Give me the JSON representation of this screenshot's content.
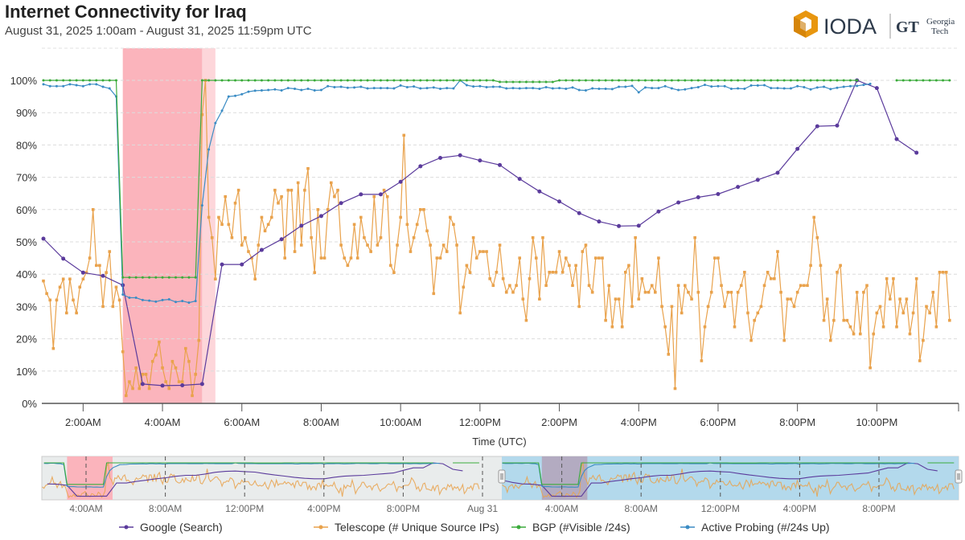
{
  "header": {
    "title": "Internet Connectivity for Iraq",
    "subtitle": "August 31, 2025 1:00am - August 31, 2025 11:59pm UTC"
  },
  "logo": {
    "ioda": "IODA",
    "gt_mark": "GT",
    "gt_line1": "Georgia",
    "gt_line2": "Tech"
  },
  "colors": {
    "google": "#5b3b9c",
    "telescope": "#e9a24c",
    "bgp": "#3bab3b",
    "probing": "#3b8cc4",
    "outage": "#fbb4bc",
    "outage_light": "#fdd6da",
    "nav_selection": "#a9d6ec"
  },
  "chart_data": {
    "type": "line",
    "title": "Internet Connectivity for Iraq",
    "xlabel": "Time (UTC)",
    "ylabel": "",
    "ylim": [
      0,
      110
    ],
    "xlim": [
      "01:00",
      "23:59"
    ],
    "grid": true,
    "legend_position": "bottom",
    "x_ticks": [
      {
        "time": "02:00",
        "label": "2:00AM"
      },
      {
        "time": "04:00",
        "label": "4:00AM"
      },
      {
        "time": "06:00",
        "label": "6:00AM"
      },
      {
        "time": "08:00",
        "label": "8:00AM"
      },
      {
        "time": "10:00",
        "label": "10:00AM"
      },
      {
        "time": "12:00",
        "label": "12:00PM"
      },
      {
        "time": "14:00",
        "label": "2:00PM"
      },
      {
        "time": "16:00",
        "label": "4:00PM"
      },
      {
        "time": "18:00",
        "label": "6:00PM"
      },
      {
        "time": "20:00",
        "label": "8:00PM"
      },
      {
        "time": "22:00",
        "label": "10:00PM"
      }
    ],
    "y_ticks": [
      {
        "value": 0,
        "label": "0%"
      },
      {
        "value": 10,
        "label": "10%"
      },
      {
        "value": 20,
        "label": "20%"
      },
      {
        "value": 30,
        "label": "30%"
      },
      {
        "value": 40,
        "label": "40%"
      },
      {
        "value": 50,
        "label": "50%"
      },
      {
        "value": 60,
        "label": "60%"
      },
      {
        "value": 70,
        "label": "70%"
      },
      {
        "value": 80,
        "label": "80%"
      },
      {
        "value": 90,
        "label": "90%"
      },
      {
        "value": 100,
        "label": "100%"
      }
    ],
    "outage_regions": [
      {
        "start": "03:00",
        "end": "05:00",
        "level": "severe"
      },
      {
        "start": "05:00",
        "end": "05:20",
        "level": "minor"
      }
    ],
    "series": [
      {
        "key": "google",
        "name": "Google (Search)",
        "marker": "circle",
        "start": "01:00",
        "interval_minutes": 30,
        "values": [
          51,
          44.8,
          40.5,
          39.5,
          36.6,
          6,
          5.5,
          5.6,
          6,
          43,
          43,
          47.5,
          50.8,
          55,
          58,
          62,
          64.7,
          64.7,
          68.6,
          73.4,
          76,
          76.8,
          75.2,
          73.8,
          69.5,
          65.6,
          62.5,
          58.9,
          56.3,
          54.9,
          55,
          59.4,
          62.2,
          63.8,
          64.8,
          67,
          69.2,
          71.4,
          78.8,
          85.8,
          86,
          100,
          97.6,
          81.8,
          77.6
        ]
      },
      {
        "key": "telescope",
        "name": "Telescope (# Unique Source IPs)",
        "marker": "square",
        "start": "01:00",
        "interval_minutes": 5,
        "values": [
          37.9,
          34,
          32,
          17,
          32,
          36,
          38.5,
          28,
          38.5,
          32,
          28,
          36,
          38.5,
          40.5,
          45,
          60,
          42.7,
          42.7,
          30,
          40.5,
          47,
          30,
          36,
          32,
          16,
          2.4,
          6.7,
          4.6,
          11,
          4.6,
          9,
          9,
          4.6,
          13,
          15,
          19,
          11,
          6.7,
          4.6,
          13,
          11,
          6.7,
          6.7,
          17,
          13,
          2.4,
          9,
          19.5,
          89.4,
          100,
          57.6,
          51.3,
          38.5,
          57.6,
          55.4,
          64,
          55.4,
          51.3,
          62,
          66,
          49,
          51.3,
          47,
          45,
          38.5,
          49,
          57.6,
          53.4,
          55.4,
          57.6,
          66,
          62,
          64,
          45,
          66,
          66,
          47,
          68.3,
          49,
          66,
          72.7,
          51.3,
          40.5,
          60,
          45,
          45,
          60,
          68.3,
          64,
          66,
          49,
          45,
          42.7,
          45,
          55.4,
          45,
          57.6,
          51.3,
          49,
          47,
          64,
          49,
          51.3,
          66,
          64,
          42.7,
          40.5,
          49,
          57.6,
          83,
          55.4,
          47,
          51.3,
          55.4,
          60,
          60,
          53.4,
          49,
          34,
          45,
          45,
          49,
          47,
          57.6,
          55.4,
          49,
          28,
          36,
          42.7,
          40.5,
          51.3,
          45,
          47,
          47,
          47,
          38.6,
          36.5,
          40.6,
          49,
          38.6,
          34.4,
          36.5,
          34.4,
          36.5,
          45,
          32.3,
          25.7,
          38.6,
          51.3,
          45,
          32.3,
          51.3,
          36.5,
          40.6,
          40.6,
          40.6,
          47,
          40.6,
          45,
          42.7,
          36.5,
          42.7,
          30,
          47,
          49,
          36.5,
          34.4,
          45,
          45,
          45,
          25.7,
          36.5,
          23.7,
          32.3,
          32.3,
          23.7,
          40.6,
          42.7,
          30,
          51.3,
          32.3,
          38.6,
          34.4,
          34.4,
          36.5,
          34.4,
          45,
          30,
          23.7,
          15.2,
          30,
          4.6,
          36.5,
          28,
          36.5,
          34.4,
          32.3,
          51.3,
          34.4,
          13.2,
          23.7,
          30,
          34.4,
          45,
          45,
          36.5,
          30,
          34.4,
          34.4,
          23.7,
          34.4,
          36.5,
          40.6,
          28,
          19.5,
          25.7,
          28,
          30,
          36.5,
          40.6,
          38.6,
          38.6,
          47,
          34.4,
          19.5,
          32.3,
          32.3,
          30,
          34.4,
          36.5,
          36.5,
          36.5,
          42.7,
          57.6,
          51.3,
          42.7,
          25.7,
          32.3,
          19.5,
          25.7,
          40.6,
          42.7,
          25.7,
          25.7,
          23.7,
          21.5,
          34.4,
          21.5,
          34.4,
          36.5,
          11,
          21.5,
          28,
          30,
          23.7,
          38.6,
          32.3,
          38.6,
          23.7,
          32.3,
          28,
          32.3,
          21.5,
          28,
          38.6,
          13.2,
          19.5,
          30,
          28,
          34.4,
          23.7,
          40.6,
          40.6,
          40.6,
          25.7
        ]
      },
      {
        "key": "bgp",
        "name": "BGP (#Visible /24s)",
        "marker": "dot",
        "start": "01:00",
        "interval_minutes": 10,
        "values": [
          100,
          100,
          100,
          100,
          100,
          100,
          100,
          100,
          100,
          100,
          100,
          100,
          39,
          39,
          39,
          39,
          39,
          39,
          39,
          39,
          39,
          39,
          39,
          39,
          100,
          100,
          100,
          100,
          100,
          100,
          100,
          100,
          100,
          100,
          100,
          100,
          100,
          100,
          100,
          100,
          100,
          100,
          100,
          100,
          100,
          100,
          100,
          100,
          100,
          100,
          100,
          100,
          100,
          100,
          100,
          100,
          100,
          100,
          100,
          100,
          100,
          100,
          100,
          100,
          100,
          100,
          100,
          100,
          100,
          99.5,
          99.5,
          99.5,
          99.5,
          99.5,
          99.5,
          99.5,
          99.5,
          99.5,
          100,
          100,
          100,
          100,
          100,
          100,
          100,
          100,
          100,
          100,
          100,
          100,
          100,
          100,
          100,
          100,
          100,
          100,
          100,
          100,
          100,
          100,
          100,
          100,
          100,
          100,
          100,
          100,
          100,
          100,
          100,
          100,
          100,
          100,
          100,
          100,
          100,
          100,
          100,
          100,
          100,
          100,
          100,
          100,
          100,
          100,
          null,
          null,
          null,
          null,
          null,
          100,
          100,
          100,
          100,
          100,
          100,
          100,
          100,
          100
        ]
      },
      {
        "key": "probing",
        "name": "Active Probing (#/24s Up)",
        "marker": "dot",
        "start": "01:00",
        "interval_minutes": 10,
        "values": [
          98.8,
          98.2,
          98.2,
          98.2,
          98.8,
          98.5,
          98.2,
          98.8,
          98.8,
          98.0,
          97.5,
          95.0,
          33.7,
          32.7,
          32.7,
          32.0,
          31.8,
          31.5,
          32.0,
          32.2,
          31.4,
          31.7,
          31.2,
          31.7,
          61.3,
          78.6,
          86.8,
          90.6,
          95.0,
          95.2,
          95.7,
          96.5,
          96.8,
          96.9,
          97.0,
          97.2,
          96.9,
          97.6,
          97.4,
          97.0,
          97.4,
          96.9,
          97.0,
          98.2,
          97.9,
          98.0,
          97.7,
          97.8,
          98.0,
          97.5,
          97.6,
          97.6,
          97.6,
          97.5,
          98.4,
          97.9,
          98.1,
          97.5,
          97.6,
          97.8,
          97.4,
          97.6,
          97.5,
          100,
          98.5,
          98.1,
          98.2,
          97.9,
          98.0,
          98.0,
          97.5,
          97.6,
          97.5,
          97.6,
          97.6,
          97.4,
          97.9,
          97.5,
          97.6,
          97.4,
          97.8,
          97.0,
          96.9,
          97.5,
          97.4,
          97.4,
          97.3,
          98.0,
          98.0,
          98.3,
          96.3,
          97.8,
          97.6,
          97.6,
          98.2,
          97.5,
          97.0,
          97.2,
          97.6,
          97.9,
          98.6,
          98.1,
          98.2,
          98.2,
          97.4,
          97.5,
          97.4,
          98.4,
          98.4,
          98.5,
          97.6,
          97.6,
          97.5,
          97.5,
          98.2,
          97.9,
          97.2,
          97.8,
          98.0,
          97.3,
          97.7,
          98.0,
          98.2,
          98.3,
          98.6,
          98.9
        ]
      }
    ],
    "navigator": {
      "ticks": [
        "4:00AM",
        "8:00AM",
        "12:00PM",
        "4:00PM",
        "8:00PM",
        "Aug 31",
        "4:00AM",
        "8:00AM",
        "12:00PM",
        "4:00PM",
        "8:00PM"
      ],
      "selection": [
        "Aug 31 01:00",
        "Aug 31 23:59"
      ]
    }
  }
}
